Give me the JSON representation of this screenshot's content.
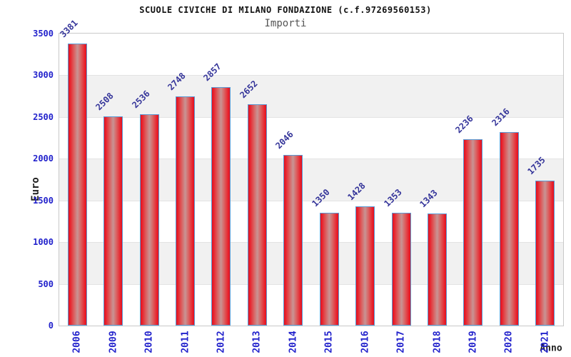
{
  "chart_data": {
    "type": "bar",
    "title": "SCUOLE CIVICHE DI MILANO FONDAZIONE (c.f.97269560153)",
    "subtitle": "Importi",
    "xlabel": "Anno",
    "ylabel": "Euro",
    "categories": [
      "2006",
      "2009",
      "2010",
      "2011",
      "2012",
      "2013",
      "2014",
      "2015",
      "2016",
      "2017",
      "2018",
      "2019",
      "2020",
      "2021"
    ],
    "values": [
      3381,
      2508,
      2536,
      2748,
      2857,
      2652,
      2046,
      1350,
      1428,
      1353,
      1343,
      2236,
      2316,
      1735
    ],
    "ylim": [
      0,
      3500
    ],
    "ytick_step": 500,
    "grid": "horizontal-bands-alternating",
    "legend": "none",
    "colors": {
      "bar_edge": "#e2101e",
      "bar_center_highlight": "#c89494",
      "bar_border": "#5b9bd5",
      "axis_tick_label": "#2222cc",
      "value_label": "#333399",
      "band_gray": "#f1f1f1",
      "plot_border": "#c9c9c9",
      "title": "#111111",
      "subtitle": "#555555",
      "axis_title": "#222222"
    }
  }
}
